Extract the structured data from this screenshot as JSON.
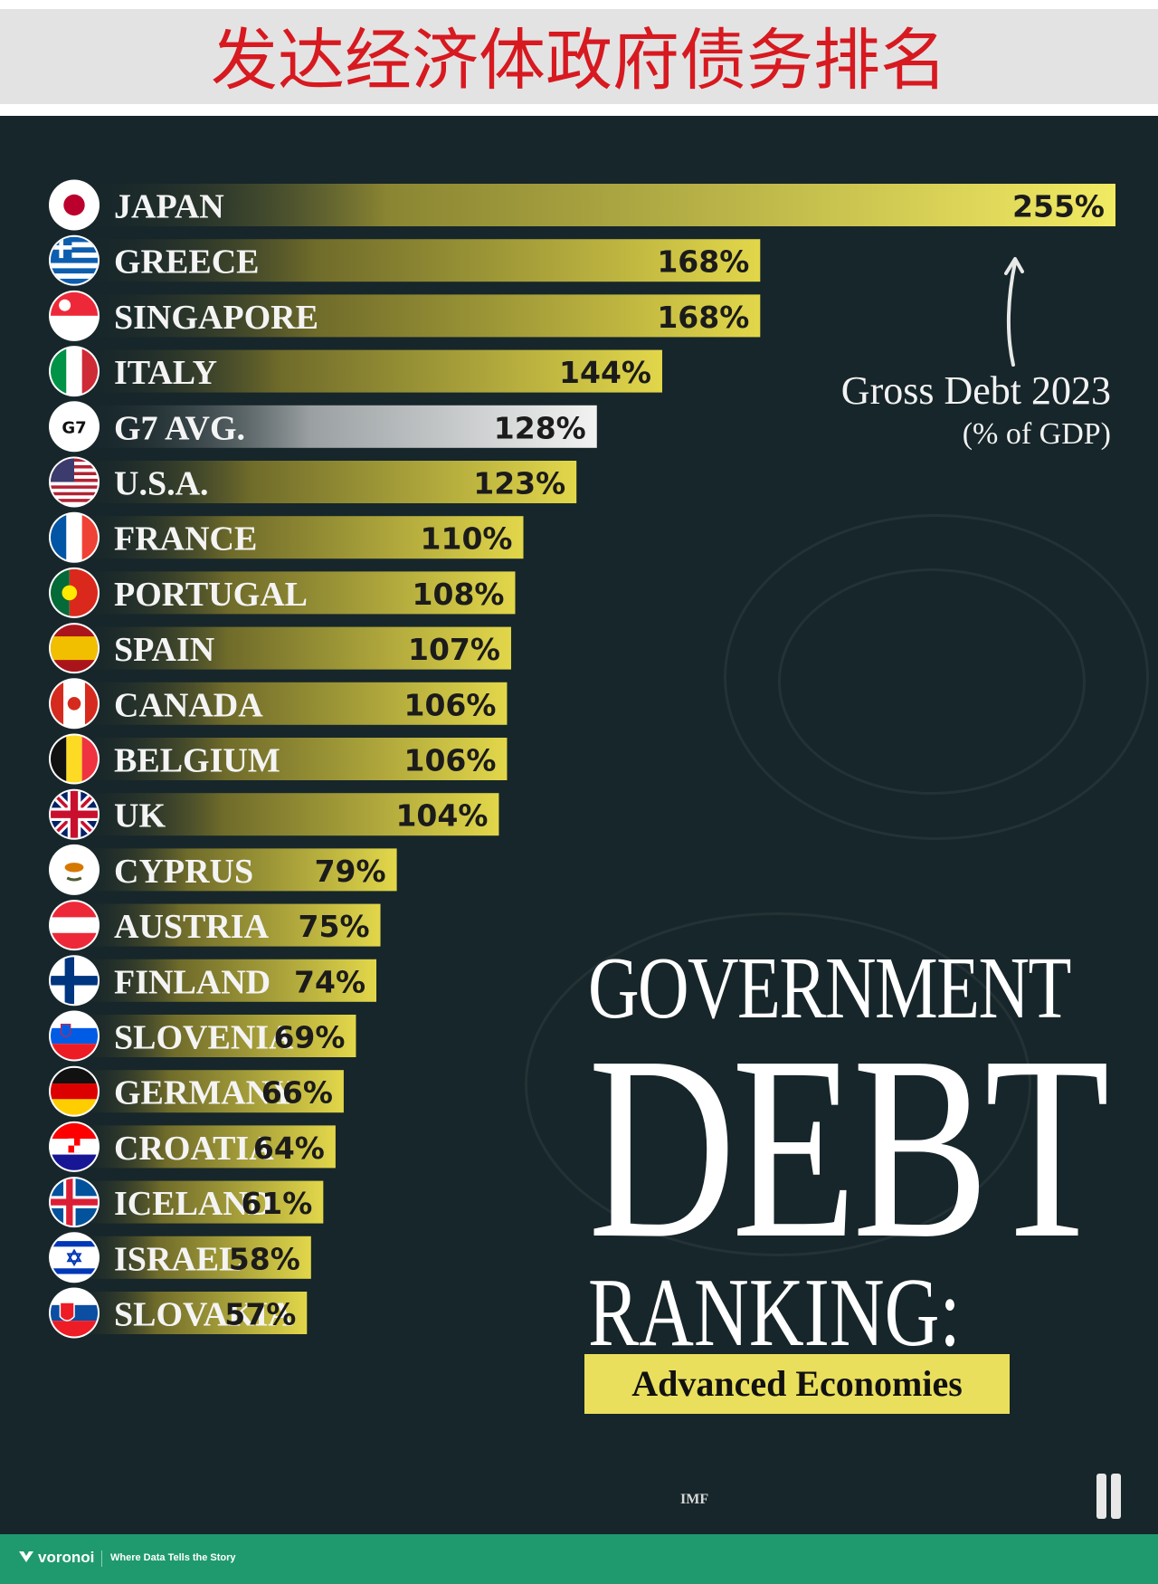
{
  "page_title": "发达经济体政府债务排名",
  "poster": {
    "title_line1": "GOVERNMENT",
    "title_line2": "DEBT",
    "title_line3": "RANKING:",
    "subtitle": "Advanced Economies",
    "measure_label": "Gross Debt 2023",
    "measure_unit": "(% of GDP)",
    "source": "IMF"
  },
  "footer": {
    "brand": "voronoi",
    "tagline": "Where Data Tells the Story"
  },
  "chart_data": {
    "type": "bar",
    "orientation": "horizontal",
    "title": "Gross Debt 2023",
    "ylabel": "(% of GDP)",
    "categories": [
      "JAPAN",
      "GREECE",
      "SINGAPORE",
      "ITALY",
      "G7 AVG.",
      "U.S.A.",
      "FRANCE",
      "PORTUGAL",
      "SPAIN",
      "CANADA",
      "BELGIUM",
      "UK",
      "CYPRUS",
      "AUSTRIA",
      "FINLAND",
      "SLOVENIA",
      "GERMANY",
      "CROATIA",
      "ICELAND",
      "ISRAEL",
      "SLOVAKIA"
    ],
    "values": [
      255,
      168,
      168,
      144,
      128,
      123,
      110,
      108,
      107,
      106,
      106,
      104,
      79,
      75,
      74,
      69,
      66,
      64,
      61,
      58,
      57
    ],
    "value_labels": [
      "255%",
      "168%",
      "168%",
      "144%",
      "128%",
      "123%",
      "110%",
      "108%",
      "107%",
      "106%",
      "106%",
      "104%",
      "79%",
      "75%",
      "74%",
      "69%",
      "66%",
      "64%",
      "61%",
      "58%",
      "57%"
    ],
    "xlim": [
      0,
      255
    ],
    "highlight_category": "G7 AVG.",
    "flag_badge_text": "G7",
    "grid": false,
    "legend": "none",
    "colors": {
      "bar": "#e2d74a",
      "bar_japan": "#f1ea62",
      "highlight": "#ececec",
      "background": "#17262a",
      "label": "#f4f4f4",
      "value_text": "#1b1b1b"
    },
    "flags": [
      "japan-flag",
      "greece-flag",
      "singapore-flag",
      "italy-flag",
      "g7-badge",
      "usa-flag",
      "france-flag",
      "portugal-flag",
      "spain-flag",
      "canada-flag",
      "belgium-flag",
      "uk-flag",
      "cyprus-flag",
      "austria-flag",
      "finland-flag",
      "slovenia-flag",
      "germany-flag",
      "croatia-flag",
      "iceland-flag",
      "israel-flag",
      "slovakia-flag"
    ]
  }
}
